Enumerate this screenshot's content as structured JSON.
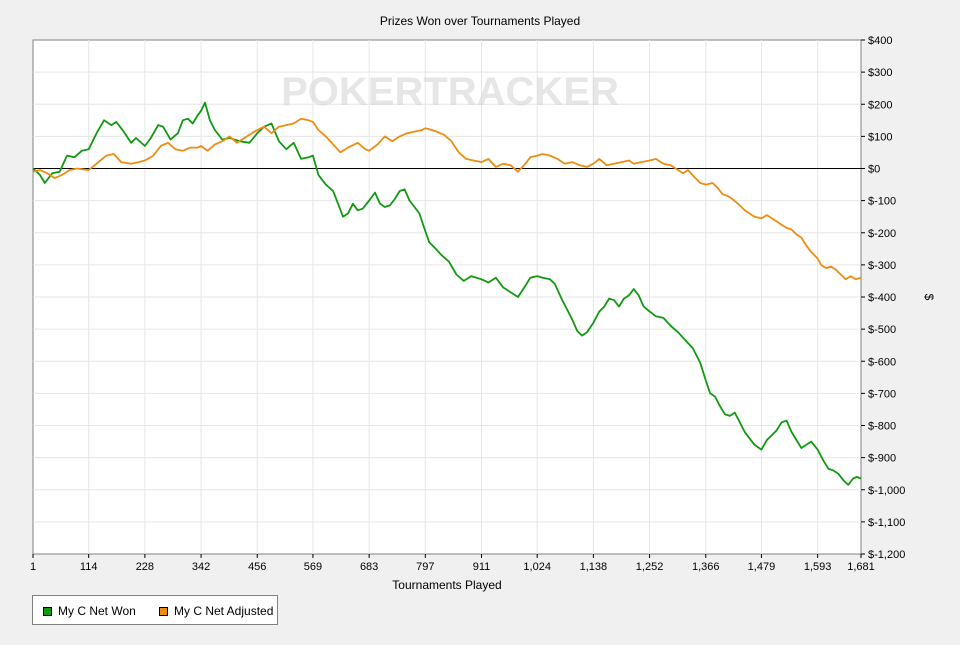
{
  "colors": {
    "won": "#119911",
    "adjusted": "#ee8c12",
    "zero": "#000000",
    "grid": "#e6e6e6"
  },
  "chart_data": {
    "type": "line",
    "title": "Prizes Won over Tournaments Played",
    "xlabel": "Tournaments Played",
    "ylabel": "$",
    "xlim": [
      1,
      1681
    ],
    "ylim": [
      -1200,
      400
    ],
    "x_ticks": [
      "1",
      "114",
      "228",
      "342",
      "456",
      "569",
      "683",
      "797",
      "911",
      "1,024",
      "1,138",
      "1,252",
      "1,366",
      "1,479",
      "1,593",
      "1,681"
    ],
    "y_ticks": [
      "$400",
      "$300",
      "$200",
      "$100",
      "$0",
      "$-100",
      "$-200",
      "$-300",
      "$-400",
      "$-500",
      "$-600",
      "$-700",
      "$-800",
      "$-900",
      "$-1,000",
      "$-1,100",
      "$-1,200"
    ],
    "grid": true,
    "legend": "bottom-left",
    "watermark": "POKERTRACKER",
    "series": [
      {
        "name": "My C Net Won",
        "color": "#119911",
        "points": [
          [
            1,
            0
          ],
          [
            15,
            -20
          ],
          [
            25,
            -45
          ],
          [
            40,
            -15
          ],
          [
            55,
            -10
          ],
          [
            70,
            40
          ],
          [
            85,
            35
          ],
          [
            100,
            55
          ],
          [
            114,
            60
          ],
          [
            130,
            110
          ],
          [
            145,
            150
          ],
          [
            160,
            135
          ],
          [
            170,
            145
          ],
          [
            185,
            115
          ],
          [
            200,
            80
          ],
          [
            210,
            95
          ],
          [
            228,
            70
          ],
          [
            240,
            95
          ],
          [
            255,
            135
          ],
          [
            265,
            130
          ],
          [
            280,
            90
          ],
          [
            295,
            110
          ],
          [
            305,
            150
          ],
          [
            315,
            155
          ],
          [
            325,
            140
          ],
          [
            335,
            165
          ],
          [
            342,
            180
          ],
          [
            350,
            205
          ],
          [
            360,
            150
          ],
          [
            370,
            120
          ],
          [
            385,
            90
          ],
          [
            400,
            95
          ],
          [
            420,
            85
          ],
          [
            440,
            80
          ],
          [
            456,
            110
          ],
          [
            470,
            130
          ],
          [
            485,
            140
          ],
          [
            500,
            85
          ],
          [
            515,
            60
          ],
          [
            530,
            80
          ],
          [
            545,
            30
          ],
          [
            560,
            35
          ],
          [
            569,
            40
          ],
          [
            580,
            -20
          ],
          [
            595,
            -50
          ],
          [
            610,
            -70
          ],
          [
            620,
            -110
          ],
          [
            630,
            -150
          ],
          [
            640,
            -140
          ],
          [
            650,
            -110
          ],
          [
            660,
            -130
          ],
          [
            670,
            -125
          ],
          [
            683,
            -100
          ],
          [
            695,
            -75
          ],
          [
            705,
            -110
          ],
          [
            715,
            -120
          ],
          [
            725,
            -115
          ],
          [
            735,
            -95
          ],
          [
            745,
            -70
          ],
          [
            755,
            -65
          ],
          [
            765,
            -100
          ],
          [
            775,
            -120
          ],
          [
            785,
            -140
          ],
          [
            797,
            -195
          ],
          [
            805,
            -230
          ],
          [
            815,
            -245
          ],
          [
            830,
            -270
          ],
          [
            845,
            -290
          ],
          [
            860,
            -330
          ],
          [
            875,
            -350
          ],
          [
            890,
            -335
          ],
          [
            911,
            -345
          ],
          [
            925,
            -355
          ],
          [
            940,
            -340
          ],
          [
            955,
            -370
          ],
          [
            970,
            -385
          ],
          [
            985,
            -400
          ],
          [
            1000,
            -365
          ],
          [
            1010,
            -340
          ],
          [
            1024,
            -335
          ],
          [
            1035,
            -340
          ],
          [
            1050,
            -345
          ],
          [
            1060,
            -360
          ],
          [
            1075,
            -410
          ],
          [
            1085,
            -440
          ],
          [
            1095,
            -470
          ],
          [
            1105,
            -505
          ],
          [
            1115,
            -520
          ],
          [
            1125,
            -510
          ],
          [
            1138,
            -480
          ],
          [
            1150,
            -445
          ],
          [
            1160,
            -430
          ],
          [
            1170,
            -405
          ],
          [
            1180,
            -410
          ],
          [
            1190,
            -430
          ],
          [
            1200,
            -405
          ],
          [
            1210,
            -395
          ],
          [
            1220,
            -375
          ],
          [
            1230,
            -395
          ],
          [
            1240,
            -430
          ],
          [
            1252,
            -445
          ],
          [
            1265,
            -460
          ],
          [
            1280,
            -465
          ],
          [
            1295,
            -490
          ],
          [
            1310,
            -510
          ],
          [
            1325,
            -535
          ],
          [
            1340,
            -560
          ],
          [
            1355,
            -605
          ],
          [
            1366,
            -660
          ],
          [
            1375,
            -700
          ],
          [
            1385,
            -710
          ],
          [
            1395,
            -740
          ],
          [
            1405,
            -765
          ],
          [
            1415,
            -770
          ],
          [
            1425,
            -760
          ],
          [
            1435,
            -790
          ],
          [
            1445,
            -820
          ],
          [
            1455,
            -840
          ],
          [
            1465,
            -860
          ],
          [
            1479,
            -875
          ],
          [
            1490,
            -845
          ],
          [
            1500,
            -830
          ],
          [
            1510,
            -815
          ],
          [
            1520,
            -790
          ],
          [
            1530,
            -785
          ],
          [
            1540,
            -820
          ],
          [
            1550,
            -845
          ],
          [
            1560,
            -870
          ],
          [
            1570,
            -860
          ],
          [
            1580,
            -850
          ],
          [
            1593,
            -875
          ],
          [
            1605,
            -910
          ],
          [
            1615,
            -935
          ],
          [
            1625,
            -940
          ],
          [
            1635,
            -950
          ],
          [
            1645,
            -970
          ],
          [
            1655,
            -985
          ],
          [
            1665,
            -965
          ],
          [
            1672,
            -960
          ],
          [
            1681,
            -965
          ]
        ]
      },
      {
        "name": "My C Net Adjusted",
        "color": "#ee8c12",
        "points": [
          [
            1,
            -10
          ],
          [
            15,
            -5
          ],
          [
            30,
            -15
          ],
          [
            45,
            -30
          ],
          [
            60,
            -20
          ],
          [
            75,
            -5
          ],
          [
            90,
            0
          ],
          [
            114,
            -5
          ],
          [
            130,
            15
          ],
          [
            150,
            40
          ],
          [
            165,
            45
          ],
          [
            180,
            20
          ],
          [
            200,
            15
          ],
          [
            215,
            20
          ],
          [
            228,
            25
          ],
          [
            245,
            40
          ],
          [
            260,
            70
          ],
          [
            275,
            80
          ],
          [
            290,
            60
          ],
          [
            305,
            55
          ],
          [
            320,
            65
          ],
          [
            335,
            65
          ],
          [
            342,
            70
          ],
          [
            355,
            55
          ],
          [
            370,
            75
          ],
          [
            385,
            85
          ],
          [
            400,
            100
          ],
          [
            415,
            80
          ],
          [
            430,
            95
          ],
          [
            445,
            110
          ],
          [
            456,
            120
          ],
          [
            470,
            130
          ],
          [
            485,
            110
          ],
          [
            500,
            130
          ],
          [
            515,
            135
          ],
          [
            530,
            140
          ],
          [
            545,
            155
          ],
          [
            560,
            150
          ],
          [
            569,
            145
          ],
          [
            580,
            120
          ],
          [
            595,
            100
          ],
          [
            610,
            75
          ],
          [
            625,
            50
          ],
          [
            640,
            65
          ],
          [
            660,
            80
          ],
          [
            675,
            60
          ],
          [
            683,
            55
          ],
          [
            700,
            75
          ],
          [
            715,
            100
          ],
          [
            730,
            85
          ],
          [
            745,
            100
          ],
          [
            760,
            110
          ],
          [
            775,
            115
          ],
          [
            790,
            120
          ],
          [
            797,
            125
          ],
          [
            810,
            120
          ],
          [
            820,
            115
          ],
          [
            835,
            105
          ],
          [
            850,
            85
          ],
          [
            865,
            50
          ],
          [
            880,
            30
          ],
          [
            895,
            25
          ],
          [
            911,
            20
          ],
          [
            925,
            30
          ],
          [
            940,
            5
          ],
          [
            955,
            15
          ],
          [
            970,
            10
          ],
          [
            985,
            -10
          ],
          [
            1000,
            15
          ],
          [
            1010,
            35
          ],
          [
            1024,
            40
          ],
          [
            1035,
            45
          ],
          [
            1050,
            40
          ],
          [
            1065,
            30
          ],
          [
            1080,
            15
          ],
          [
            1095,
            20
          ],
          [
            1110,
            10
          ],
          [
            1125,
            5
          ],
          [
            1138,
            15
          ],
          [
            1150,
            30
          ],
          [
            1165,
            10
          ],
          [
            1180,
            15
          ],
          [
            1195,
            20
          ],
          [
            1210,
            25
          ],
          [
            1220,
            15
          ],
          [
            1235,
            20
          ],
          [
            1252,
            25
          ],
          [
            1265,
            30
          ],
          [
            1280,
            15
          ],
          [
            1295,
            10
          ],
          [
            1310,
            -5
          ],
          [
            1320,
            -15
          ],
          [
            1330,
            -5
          ],
          [
            1345,
            -30
          ],
          [
            1355,
            -45
          ],
          [
            1366,
            -50
          ],
          [
            1380,
            -45
          ],
          [
            1390,
            -60
          ],
          [
            1400,
            -80
          ],
          [
            1410,
            -85
          ],
          [
            1420,
            -95
          ],
          [
            1435,
            -115
          ],
          [
            1445,
            -130
          ],
          [
            1455,
            -140
          ],
          [
            1465,
            -150
          ],
          [
            1479,
            -155
          ],
          [
            1490,
            -145
          ],
          [
            1500,
            -155
          ],
          [
            1510,
            -165
          ],
          [
            1520,
            -175
          ],
          [
            1530,
            -185
          ],
          [
            1540,
            -190
          ],
          [
            1550,
            -205
          ],
          [
            1560,
            -215
          ],
          [
            1570,
            -240
          ],
          [
            1580,
            -260
          ],
          [
            1593,
            -280
          ],
          [
            1600,
            -300
          ],
          [
            1610,
            -310
          ],
          [
            1620,
            -305
          ],
          [
            1630,
            -315
          ],
          [
            1640,
            -330
          ],
          [
            1650,
            -345
          ],
          [
            1660,
            -335
          ],
          [
            1670,
            -345
          ],
          [
            1681,
            -340
          ]
        ]
      }
    ]
  }
}
